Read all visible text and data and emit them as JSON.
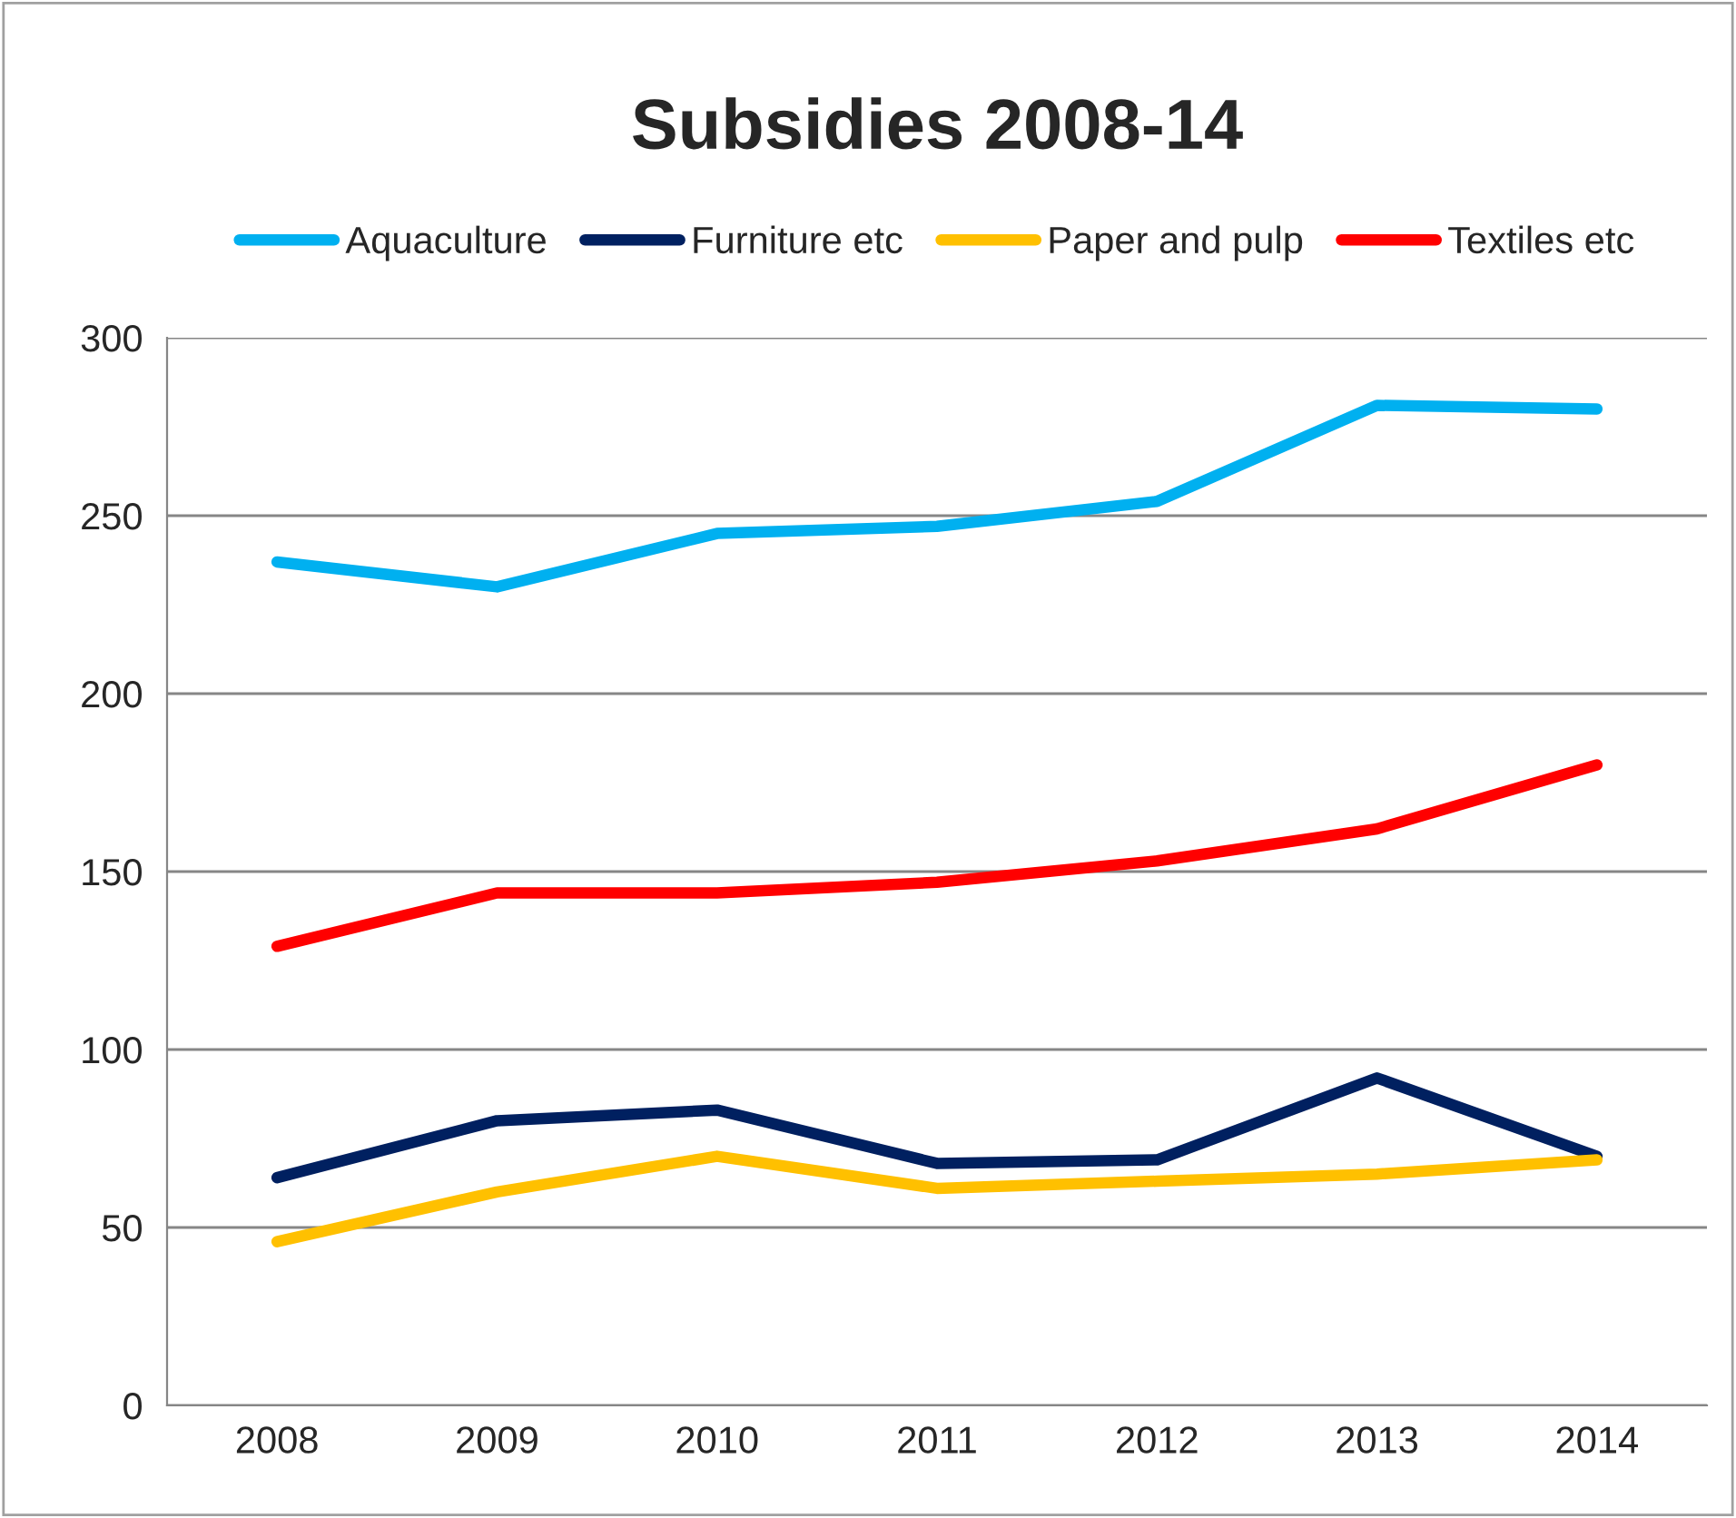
{
  "chart_data": {
    "type": "line",
    "title": "Subsidies 2008-14",
    "categories": [
      "2008",
      "2009",
      "2010",
      "2011",
      "2012",
      "2013",
      "2014"
    ],
    "series": [
      {
        "name": "Aquaculture",
        "color": "#00b0f0",
        "values": [
          237,
          230,
          245,
          247,
          254,
          281,
          280
        ]
      },
      {
        "name": "Furniture etc",
        "color": "#002060",
        "values": [
          64,
          80,
          83,
          68,
          69,
          92,
          70
        ]
      },
      {
        "name": "Paper and pulp",
        "color": "#ffc000",
        "values": [
          46,
          60,
          70,
          61,
          63,
          65,
          69
        ]
      },
      {
        "name": "Textiles etc",
        "color": "#ff0000",
        "values": [
          129,
          144,
          144,
          147,
          153,
          162,
          180
        ]
      }
    ],
    "ylim": [
      0,
      300
    ],
    "yticks": [
      0,
      50,
      100,
      150,
      200,
      250,
      300
    ],
    "grid": "y",
    "legend": "top",
    "marker": "none",
    "line_style": "solid"
  }
}
